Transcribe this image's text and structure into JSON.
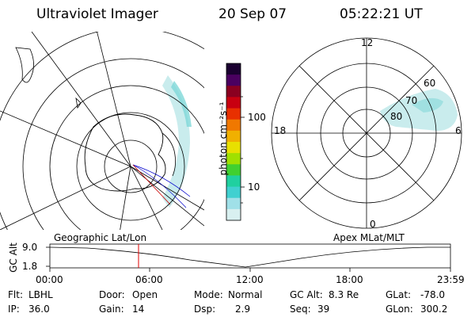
{
  "header": {
    "instrument": "Ultraviolet Imager",
    "date": "20 Sep 07",
    "time": "05:22:21 UT"
  },
  "colorbar": {
    "label": "photon cm⁻²s⁻¹",
    "ticks": [
      "100",
      "10"
    ],
    "colors": [
      "#1a0030",
      "#4a0060",
      "#8a0020",
      "#c80010",
      "#e83000",
      "#f07800",
      "#f0b000",
      "#e8e000",
      "#a0e000",
      "#40d030",
      "#20d0a0",
      "#40d0d0",
      "#a0e0e8",
      "#d8f0f0"
    ]
  },
  "left_panel": {
    "projection": "Geographic Lat/Lon"
  },
  "right_panel": {
    "projection": "Apex MLat/MLT",
    "mlt_labels": [
      "12",
      "18",
      "6",
      "0"
    ],
    "mlat_labels": [
      "60",
      "70",
      "80"
    ]
  },
  "timeline": {
    "y_axis_label": "GC Alt",
    "y_ticks": [
      "9.0",
      "1.8"
    ],
    "x_ticks": [
      "00:00",
      "06:00",
      "12:00",
      "18:00",
      "23:59"
    ],
    "current_marker_time": "05:22:21",
    "marker_color": "#e00000"
  },
  "info": {
    "row1": [
      {
        "key": "Flt:",
        "value": "LBHL"
      },
      {
        "key": "Door:",
        "value": "Open"
      },
      {
        "key": "Mode:",
        "value": "Normal"
      },
      {
        "key": "GC Alt:",
        "value": "8.3 Re"
      },
      {
        "key": "GLat:",
        "value": "-78.0"
      }
    ],
    "row2": [
      {
        "key": "IP:",
        "value": "36.0"
      },
      {
        "key": "Gain:",
        "value": "14"
      },
      {
        "key": "Dsp:",
        "value": "2.9"
      },
      {
        "key": "Seq:",
        "value": "39"
      },
      {
        "key": "GLon:",
        "value": "300.2"
      }
    ]
  }
}
